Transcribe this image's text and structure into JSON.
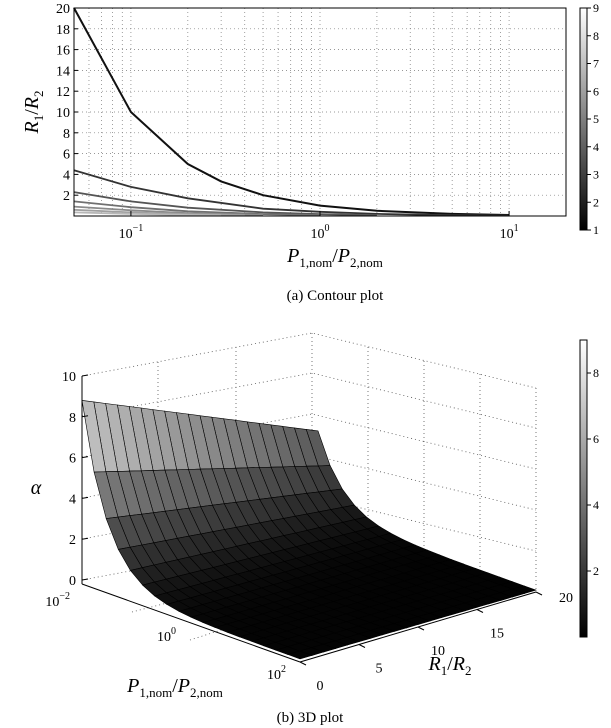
{
  "figure": {
    "caption_a": "(a) Contour plot",
    "caption_b": "(b) 3D plot"
  },
  "chart_data": [
    {
      "type": "line",
      "subtype": "contour",
      "title": "",
      "xlabel": "P1,nom/P2,nom",
      "xlabel_parts": {
        "main": "P",
        "sub1": "1,nom",
        "slash": "/",
        "main2": "P",
        "sub2": "2,nom"
      },
      "ylabel": "R1/R2",
      "ylabel_parts": {
        "main": "R",
        "sub1": "1",
        "slash": "/",
        "main2": "R",
        "sub2": "2"
      },
      "xscale": "log",
      "xlim": [
        0.05,
        20
      ],
      "ylim": [
        0,
        20
      ],
      "grid": true,
      "x_ticks": [
        {
          "value": 0.1,
          "base": "10",
          "exp": "−1"
        },
        {
          "value": 1,
          "base": "10",
          "exp": "0"
        },
        {
          "value": 10,
          "base": "10",
          "exp": "1"
        }
      ],
      "y_ticks": [
        "2",
        "4",
        "6",
        "8",
        "10",
        "12",
        "14",
        "16",
        "18",
        "20"
      ],
      "colorbar": {
        "range": [
          1,
          9
        ],
        "ticks": [
          "1",
          "2",
          "3",
          "4",
          "5",
          "6",
          "7",
          "8",
          "9"
        ]
      },
      "series": [
        {
          "color": "#111111",
          "x": [
            0.05,
            0.1,
            0.2,
            0.3,
            0.5,
            1,
            2,
            5,
            10
          ],
          "y": [
            20,
            10,
            5,
            3.33,
            2,
            1,
            0.5,
            0.2,
            0.1
          ]
        },
        {
          "color": "#333333",
          "x": [
            0.05,
            0.1,
            0.2,
            0.5,
            1,
            2,
            5,
            10
          ],
          "y": [
            4.4,
            2.8,
            1.7,
            0.7,
            0.4,
            0.2,
            0.08,
            0.04
          ]
        },
        {
          "color": "#555555",
          "x": [
            0.05,
            0.1,
            0.2,
            0.5,
            1,
            2
          ],
          "y": [
            2.3,
            1.4,
            0.8,
            0.35,
            0.17,
            0.08
          ]
        },
        {
          "color": "#707070",
          "x": [
            0.05,
            0.1,
            0.2,
            0.5,
            1
          ],
          "y": [
            1.4,
            0.85,
            0.45,
            0.18,
            0.08
          ]
        },
        {
          "color": "#8a8a8a",
          "x": [
            0.05,
            0.1,
            0.2,
            0.5
          ],
          "y": [
            0.9,
            0.55,
            0.28,
            0.1
          ]
        },
        {
          "color": "#a0a0a0",
          "x": [
            0.05,
            0.1,
            0.2,
            0.4
          ],
          "y": [
            0.6,
            0.35,
            0.18,
            0.07
          ]
        },
        {
          "color": "#b8b8b8",
          "x": [
            0.05,
            0.1,
            0.2,
            0.3
          ],
          "y": [
            0.35,
            0.2,
            0.1,
            0.05
          ]
        }
      ]
    },
    {
      "type": "surface",
      "title": "",
      "zlabel": "α",
      "xlabel": "P1,nom/P2,nom",
      "xlabel_parts": {
        "main": "P",
        "sub1": "1,nom",
        "slash": "/",
        "main2": "P",
        "sub2": "2,nom"
      },
      "ylabel": "R1/R2",
      "ylabel_parts": {
        "main": "R",
        "sub1": "1",
        "slash": "/",
        "main2": "R",
        "sub2": "2"
      },
      "xscale": "log",
      "xlim": [
        0.01,
        100
      ],
      "ylim": [
        0,
        20
      ],
      "zlim": [
        0,
        10
      ],
      "grid": true,
      "z_ticks": [
        "0",
        "2",
        "4",
        "6",
        "8",
        "10"
      ],
      "x_ticks": [
        {
          "base": "10",
          "exp": "−2"
        },
        {
          "base": "10",
          "exp": "0"
        },
        {
          "base": "10",
          "exp": "2"
        }
      ],
      "y_ticks": [
        "0",
        "5",
        "10",
        "15",
        "20"
      ],
      "colorbar": {
        "range": [
          0,
          9
        ],
        "ticks": [
          "2",
          "4",
          "6",
          "8"
        ]
      },
      "peak_value": 9,
      "floor_value": 0.15
    }
  ]
}
